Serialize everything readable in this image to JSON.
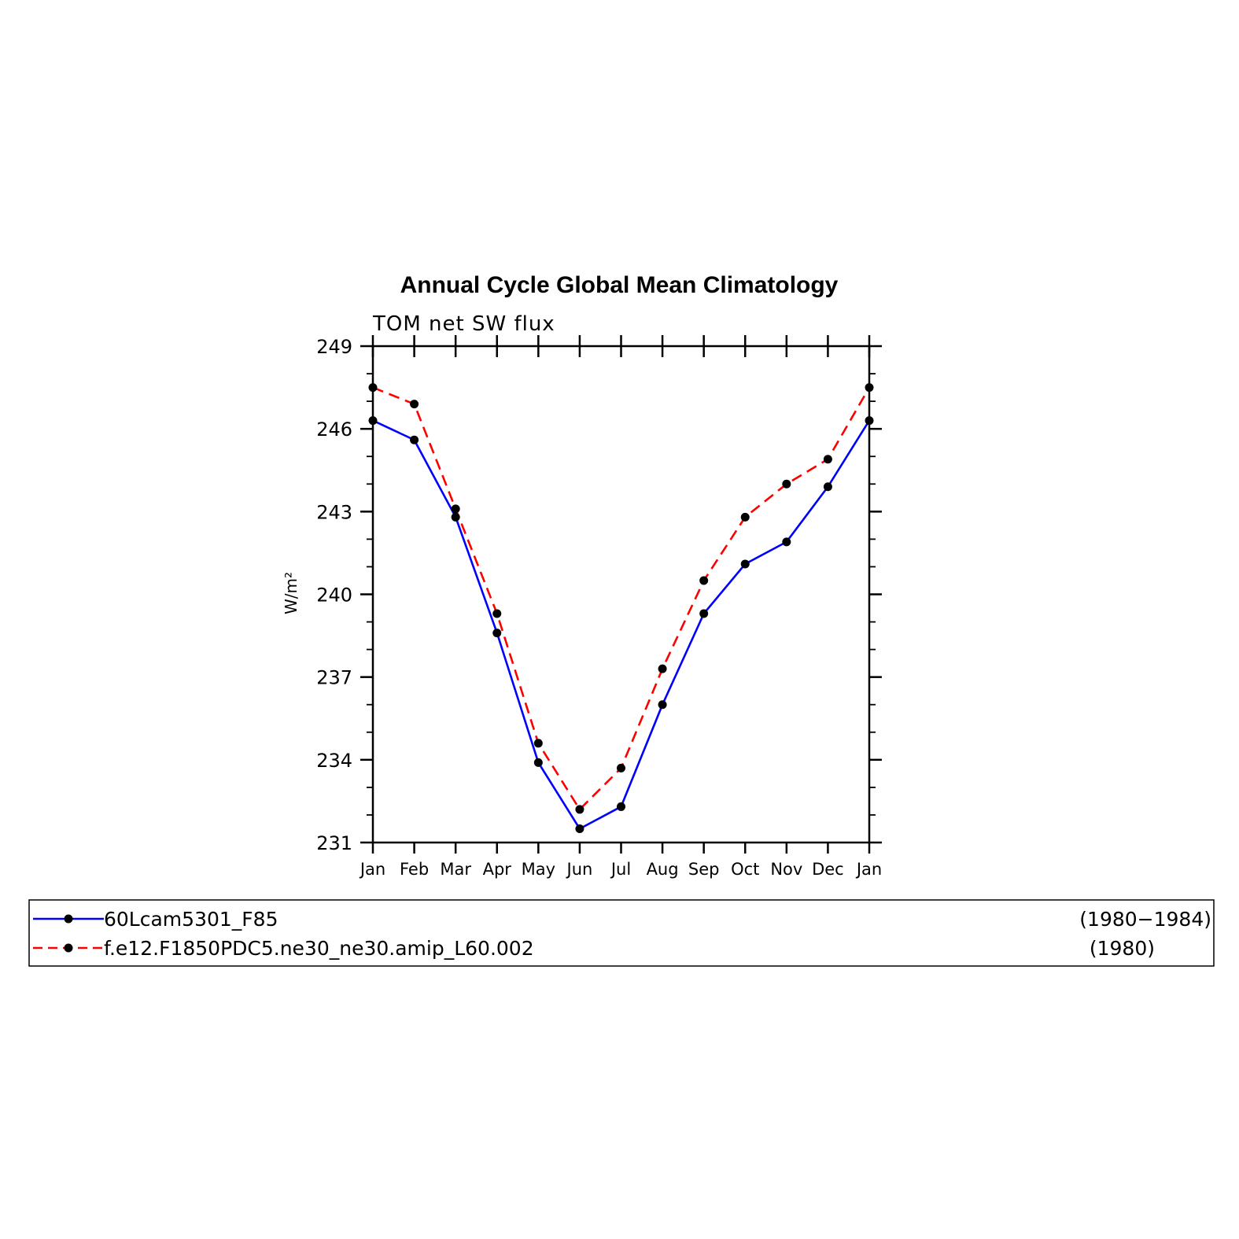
{
  "chart_data": {
    "type": "line",
    "title": "Annual Cycle Global Mean Climatology",
    "subtitle": "TOM net SW flux",
    "ylabel": "W/m²",
    "xlabel": "",
    "categories": [
      "Jan",
      "Feb",
      "Mar",
      "Apr",
      "May",
      "Jun",
      "Jul",
      "Aug",
      "Sep",
      "Oct",
      "Nov",
      "Dec",
      "Jan"
    ],
    "ylim": [
      231,
      249
    ],
    "yticks": [
      231,
      234,
      237,
      240,
      243,
      246,
      249
    ],
    "grid": false,
    "legend_position": "bottom",
    "series": [
      {
        "name": "60Lcam5301_F85",
        "period": "(1980−1984)",
        "color": "#0000ff",
        "dash": "solid",
        "values": [
          246.3,
          245.6,
          242.8,
          238.6,
          233.9,
          231.5,
          232.3,
          236.0,
          239.3,
          241.1,
          241.9,
          243.9,
          246.3
        ]
      },
      {
        "name": "f.e12.F1850PDC5.ne30_ne30.amip_L60.002",
        "period": "(1980)",
        "color": "#ff0000",
        "dash": "dashed",
        "values": [
          247.5,
          246.9,
          243.1,
          239.3,
          234.6,
          232.2,
          233.7,
          237.3,
          240.5,
          242.8,
          244.0,
          244.9,
          247.5
        ]
      }
    ]
  }
}
